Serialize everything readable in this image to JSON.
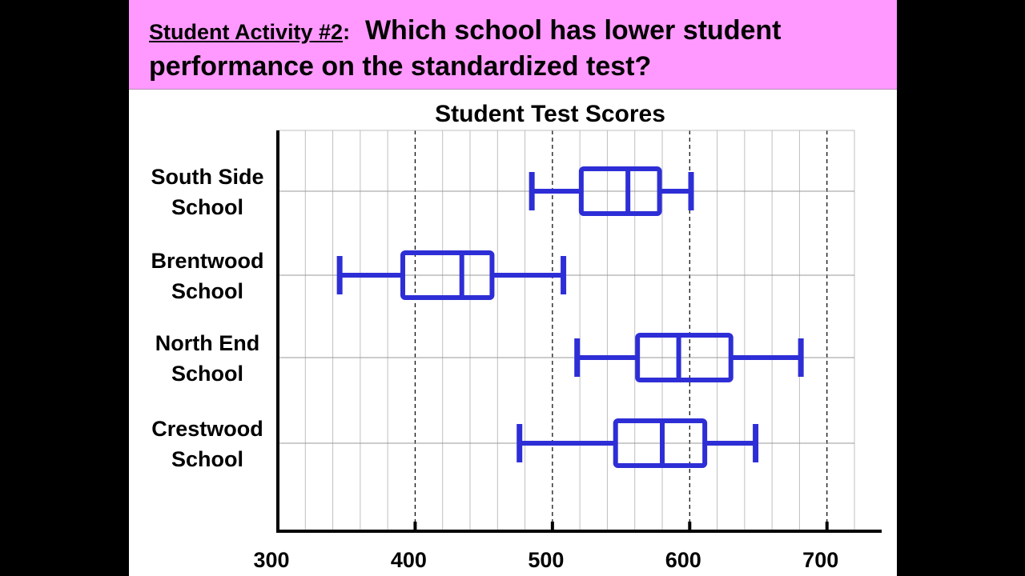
{
  "slide": {
    "header_bg": "#ff99ff",
    "activity_label": "Student Activity #2",
    "activity_colon": ":",
    "question": "Which school has lower student performance on the standardized test?"
  },
  "chart_data": {
    "type": "boxplot",
    "orientation": "horizontal",
    "title": "Student Test Scores",
    "xlabel": "",
    "ylabel": "",
    "xlim": [
      300,
      720
    ],
    "x_ticks": [
      "300",
      "400",
      "500",
      "600",
      "700"
    ],
    "grid": true,
    "box_color": "#2e2ed6",
    "categories": [
      {
        "name": [
          "South Side",
          "School"
        ],
        "min": 485,
        "q1": 521,
        "median": 555,
        "q3": 578,
        "max": 601
      },
      {
        "name": [
          "Brentwood",
          "School"
        ],
        "min": 345,
        "q1": 391,
        "median": 434,
        "q3": 456,
        "max": 508
      },
      {
        "name": [
          "North End",
          "School"
        ],
        "min": 518,
        "q1": 562,
        "median": 592,
        "q3": 630,
        "max": 681
      },
      {
        "name": [
          "Crestwood",
          "School"
        ],
        "min": 476,
        "q1": 546,
        "median": 580,
        "q3": 611,
        "max": 648
      }
    ]
  }
}
